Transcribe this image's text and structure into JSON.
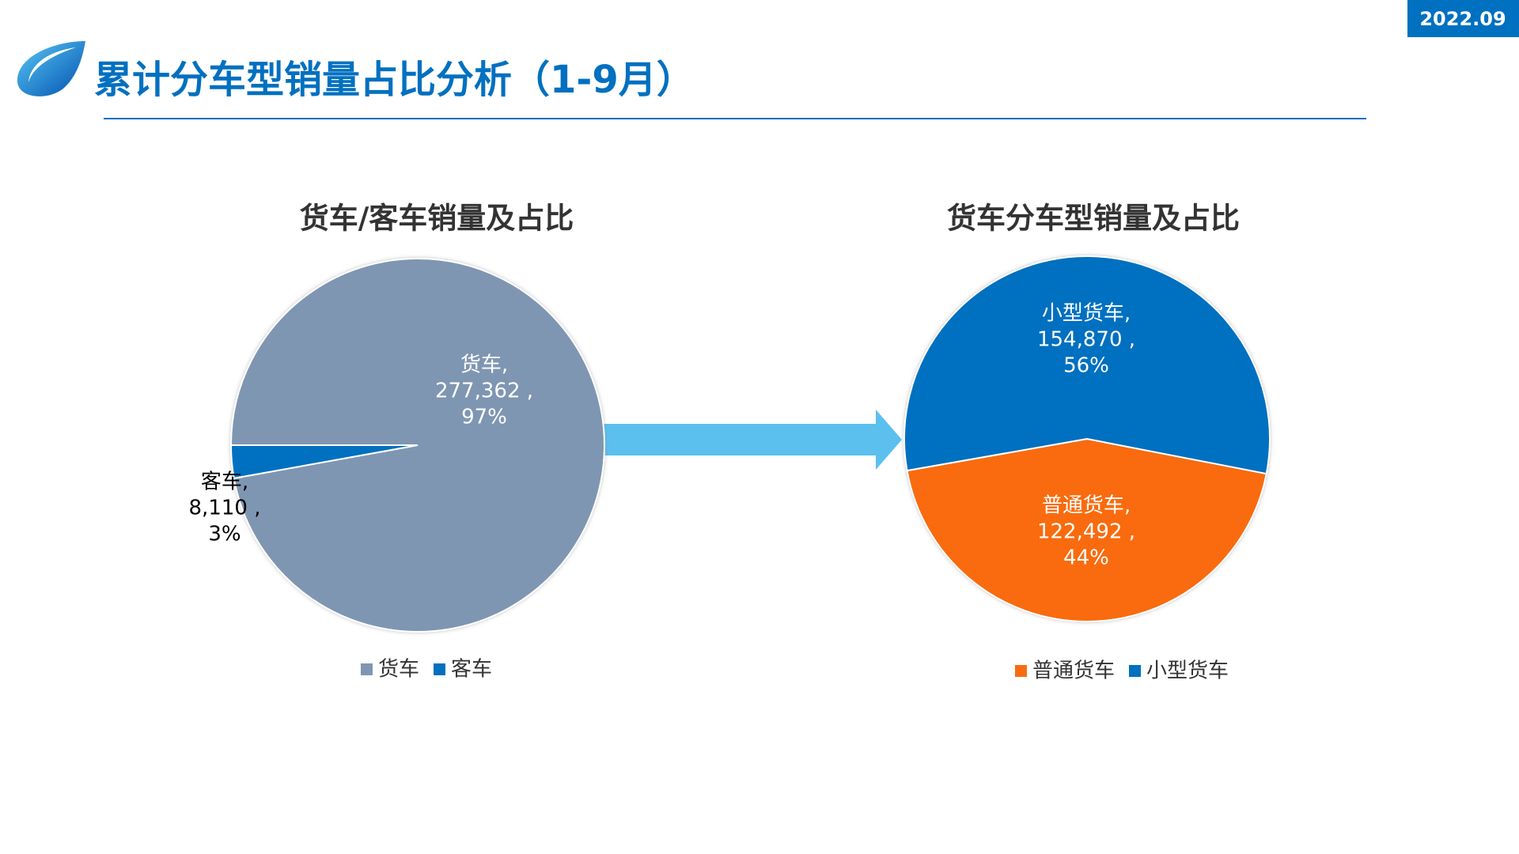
{
  "header": {
    "title": "累计分车型销量占比分析（1-9月）",
    "date": "2022.09"
  },
  "chart_data": [
    {
      "type": "pie",
      "title": "货车/客车销量及占比",
      "categories": [
        "货车",
        "客车"
      ],
      "values": [
        277362,
        8110
      ],
      "colors": [
        "#7f96b2",
        "#0070c0"
      ],
      "label_names": [
        "货车,",
        "客车,"
      ],
      "value_labels": [
        "277,362 ,",
        "8,110 ,"
      ],
      "percent_labels": [
        "97%",
        "3%"
      ]
    },
    {
      "type": "pie",
      "title": "货车分车型销量及占比",
      "categories": [
        "普通货车",
        "小型货车"
      ],
      "values": [
        122492,
        154870
      ],
      "colors": [
        "#f96b0e",
        "#0070c0"
      ],
      "label_names": [
        "普通货车,",
        "小型货车,"
      ],
      "value_labels": [
        "122,492 ,",
        "154,870 ,"
      ],
      "percent_labels": [
        "44%",
        "56%"
      ]
    }
  ]
}
